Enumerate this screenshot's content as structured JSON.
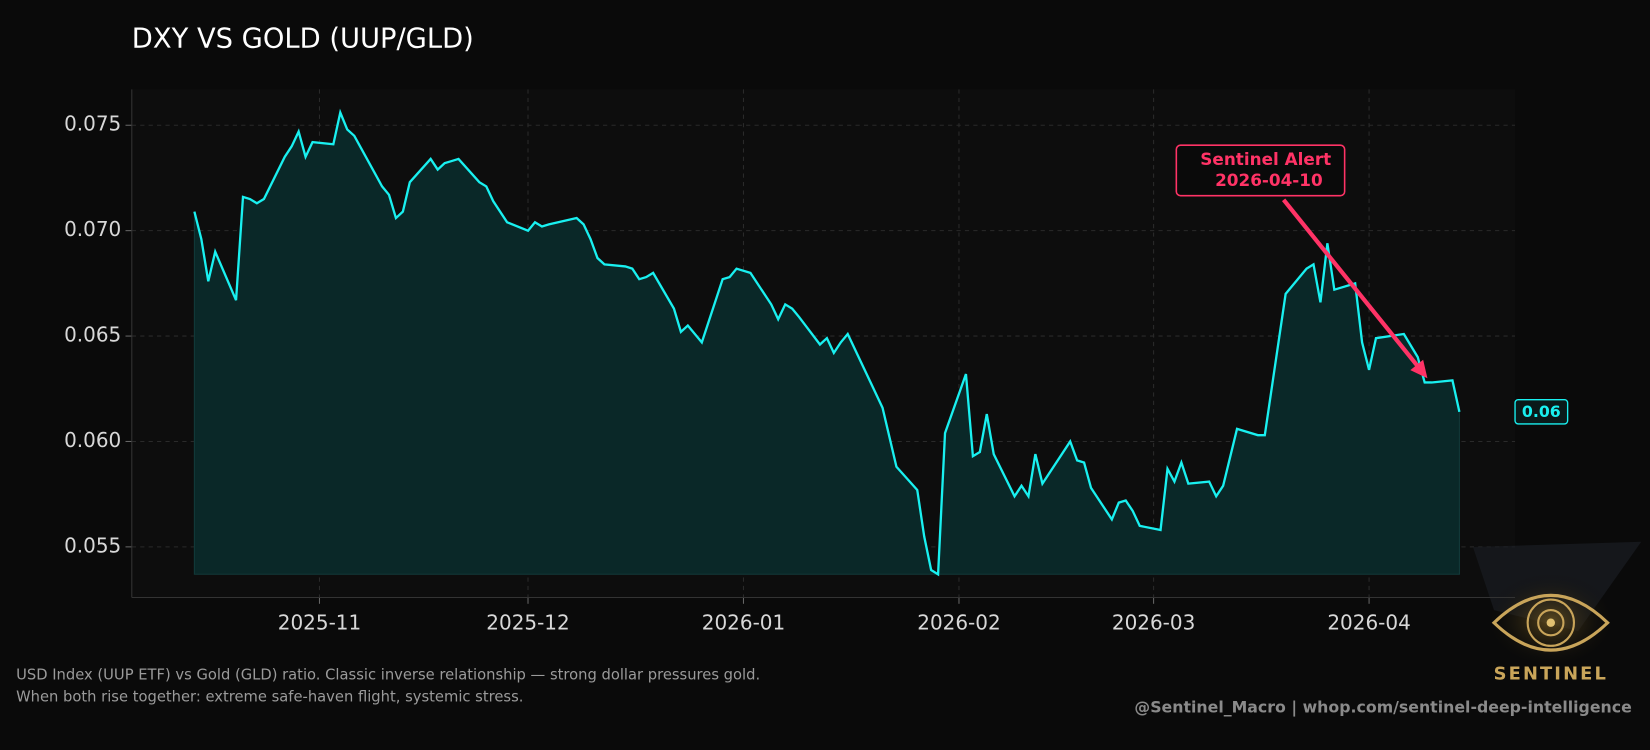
{
  "chart_data": {
    "type": "line",
    "title": "DXY VS GOLD (UUP/GLD)",
    "x": [
      "2025-10-14",
      "2025-10-15",
      "2025-10-16",
      "2025-10-17",
      "2025-10-20",
      "2025-10-21",
      "2025-10-22",
      "2025-10-23",
      "2025-10-24",
      "2025-10-27",
      "2025-10-28",
      "2025-10-29",
      "2025-10-30",
      "2025-10-31",
      "2025-11-03",
      "2025-11-04",
      "2025-11-05",
      "2025-11-06",
      "2025-11-07",
      "2025-11-10",
      "2025-11-11",
      "2025-11-12",
      "2025-11-13",
      "2025-11-14",
      "2025-11-17",
      "2025-11-18",
      "2025-11-19",
      "2025-11-20",
      "2025-11-21",
      "2025-11-24",
      "2025-11-25",
      "2025-11-26",
      "2025-11-28",
      "2025-12-01",
      "2025-12-02",
      "2025-12-03",
      "2025-12-04",
      "2025-12-08",
      "2025-12-09",
      "2025-12-10",
      "2025-12-11",
      "2025-12-12",
      "2025-12-15",
      "2025-12-16",
      "2025-12-17",
      "2025-12-18",
      "2025-12-19",
      "2025-12-22",
      "2025-12-23",
      "2025-12-24",
      "2025-12-26",
      "2025-12-29",
      "2025-12-30",
      "2025-12-31",
      "2026-01-02",
      "2026-01-05",
      "2026-01-06",
      "2026-01-07",
      "2026-01-08",
      "2026-01-09",
      "2026-01-12",
      "2026-01-13",
      "2026-01-14",
      "2026-01-15",
      "2026-01-16",
      "2026-01-21",
      "2026-01-23",
      "2026-01-26",
      "2026-01-27",
      "2026-01-28",
      "2026-01-29",
      "2026-01-30",
      "2026-02-02",
      "2026-02-03",
      "2026-02-04",
      "2026-02-05",
      "2026-02-06",
      "2026-02-09",
      "2026-02-10",
      "2026-02-11",
      "2026-02-12",
      "2026-02-13",
      "2026-02-17",
      "2026-02-18",
      "2026-02-19",
      "2026-02-20",
      "2026-02-23",
      "2026-02-24",
      "2026-02-25",
      "2026-02-26",
      "2026-02-27",
      "2026-03-02",
      "2026-03-03",
      "2026-03-04",
      "2026-03-05",
      "2026-03-06",
      "2026-03-09",
      "2026-03-10",
      "2026-03-11",
      "2026-03-13",
      "2026-03-16",
      "2026-03-17",
      "2026-03-20",
      "2026-03-23",
      "2026-03-24",
      "2026-03-25",
      "2026-03-26",
      "2026-03-27",
      "2026-03-30",
      "2026-03-31",
      "2026-04-01",
      "2026-04-02",
      "2026-04-06",
      "2026-04-08",
      "2026-04-09",
      "2026-04-10",
      "2026-04-13",
      "2026-04-14"
    ],
    "series": [
      {
        "name": "UUP/GLD",
        "color": "#19f0f0",
        "fill": "#0a2828",
        "values": [
          0.0709,
          0.0696,
          0.0676,
          0.069,
          0.0667,
          0.0716,
          0.0715,
          0.0713,
          0.0715,
          0.0735,
          0.074,
          0.0747,
          0.0735,
          0.0742,
          0.0741,
          0.0756,
          0.0748,
          0.0745,
          0.0739,
          0.0721,
          0.0717,
          0.0706,
          0.0709,
          0.0723,
          0.0734,
          0.0729,
          0.0732,
          0.0733,
          0.0734,
          0.0723,
          0.0721,
          0.0714,
          0.0704,
          0.07,
          0.0704,
          0.0702,
          0.0703,
          0.0706,
          0.0703,
          0.0696,
          0.0687,
          0.0684,
          0.0683,
          0.0682,
          0.0677,
          0.0678,
          0.068,
          0.0663,
          0.0652,
          0.0655,
          0.0647,
          0.0677,
          0.0678,
          0.0682,
          0.068,
          0.0665,
          0.0658,
          0.0665,
          0.0663,
          0.0659,
          0.0646,
          0.0649,
          0.0642,
          0.0647,
          0.0651,
          0.0616,
          0.0588,
          0.0577,
          0.0555,
          0.0539,
          0.0537,
          0.0604,
          0.0632,
          0.0593,
          0.0595,
          0.0613,
          0.0594,
          0.0574,
          0.0579,
          0.0574,
          0.0594,
          0.058,
          0.06,
          0.0591,
          0.059,
          0.0578,
          0.0563,
          0.0571,
          0.0572,
          0.0567,
          0.056,
          0.0558,
          0.0587,
          0.0581,
          0.059,
          0.058,
          0.0581,
          0.0574,
          0.0579,
          0.0606,
          0.0603,
          0.0603,
          0.067,
          0.0682,
          0.0684,
          0.0666,
          0.0694,
          0.0672,
          0.0675,
          0.0647,
          0.0634,
          0.0649,
          0.0651,
          0.064,
          0.0628,
          0.0628,
          0.0629,
          0.0614
        ]
      }
    ],
    "xlim": [
      "2025-10-05",
      "2026-04-22"
    ],
    "ylim": [
      0.0526,
      0.0767
    ],
    "xticks": [
      {
        "value": "2025-11-01",
        "label": "2025-11"
      },
      {
        "value": "2025-12-01",
        "label": "2025-12"
      },
      {
        "value": "2026-01-01",
        "label": "2026-01"
      },
      {
        "value": "2026-02-01",
        "label": "2026-02"
      },
      {
        "value": "2026-03-01",
        "label": "2026-03"
      },
      {
        "value": "2026-04-01",
        "label": "2026-04"
      }
    ],
    "yticks": [
      0.055,
      {
        "value": 0.06,
        "label": "0.060"
      },
      0.065,
      {
        "value": 0.07,
        "label": "0.070"
      },
      0.075
    ],
    "grid": true,
    "annotation": {
      "lines": [
        "Sentinel Alert",
        "2026-04-10"
      ],
      "x": "2026-04-10",
      "color": "#ff3366"
    },
    "end_label": "0.06",
    "footnote": [
      "USD Index (UUP ETF) vs Gold (GLD) ratio. Classic inverse relationship — strong dollar pressures gold.",
      "When both rise together: extreme safe-haven flight, systemic stress."
    ],
    "credit": "@Sentinel_Macro  |  whop.com/sentinel-deep-intelligence",
    "logo_text": "SENTINEL"
  }
}
